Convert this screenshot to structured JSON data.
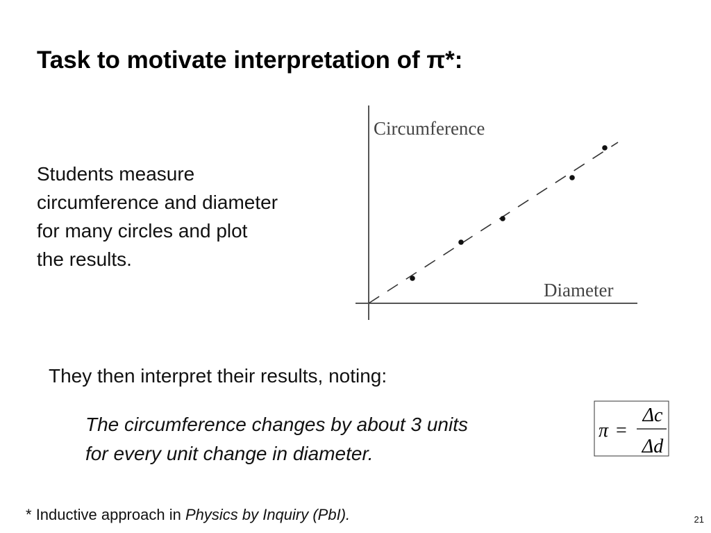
{
  "slide": {
    "title": "Task to motivate interpretation of π*:",
    "intro_lines": [
      "Students measure",
      "circumference and diameter",
      "for many circles and plot",
      "the results."
    ],
    "graph": {
      "y_label": "Circumference",
      "x_label": "Diameter"
    },
    "lead": "They then interpret their results, noting:",
    "quote_lines": [
      "The circumference changes by about 3 units",
      "for every unit change in diameter."
    ],
    "formula": {
      "lhs": "π",
      "eq": "=",
      "numerator": "Δc",
      "denominator": "Δd"
    },
    "footnote": {
      "marker": "*",
      "text": "Inductive approach in",
      "source": "Physics by Inquiry (PbI)."
    },
    "page_number": "21"
  }
}
